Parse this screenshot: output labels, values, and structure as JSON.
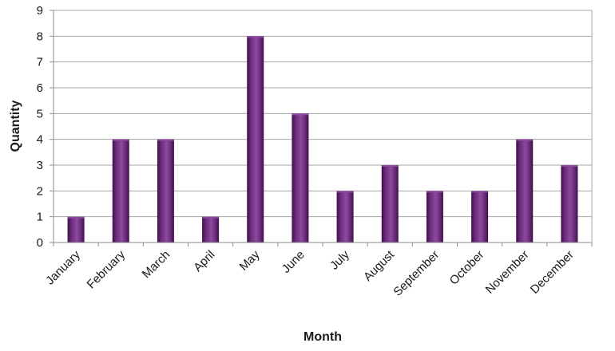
{
  "chart_data": {
    "type": "bar",
    "title": "",
    "xlabel": "Month",
    "ylabel": "Quantity",
    "categories": [
      "January",
      "February",
      "March",
      "April",
      "May",
      "June",
      "July",
      "August",
      "September",
      "October",
      "November",
      "December"
    ],
    "values": [
      1,
      4,
      4,
      1,
      8,
      5,
      2,
      3,
      2,
      2,
      4,
      3
    ],
    "ylim": [
      0,
      9
    ],
    "yticks": [
      "0",
      "1",
      "2",
      "3",
      "4",
      "5",
      "6",
      "7",
      "8",
      "9"
    ],
    "grid": true,
    "legend": "none",
    "colors": {
      "bar": "#6a2a7a",
      "bar_dark": "#3e1048",
      "bar_light": "#8e4a9e",
      "grid": "#a6a6a6",
      "axis": "#8c8c8c"
    }
  }
}
